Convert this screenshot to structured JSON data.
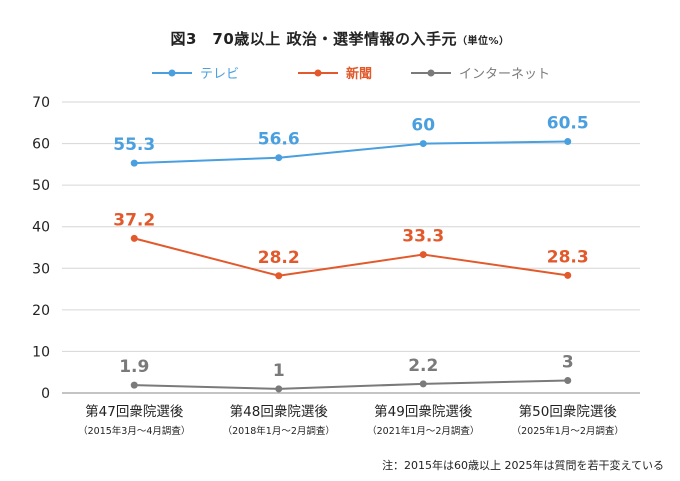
{
  "title": "図3　70歳以上  政治・選挙情報の入手元",
  "title_unit": "（単位%）",
  "footnote": "注：2015年は60歳以上  2025年は質問を若干変えている",
  "chart_data": {
    "type": "line",
    "categories": [
      "第47回衆院選後",
      "第48回衆院選後",
      "第49回衆院選後",
      "第50回衆院選後"
    ],
    "subcategories": [
      "（2015年3月～4月調査）",
      "（2018年1月～2月調査）",
      "（2021年1月～2月調査）",
      "（2025年1月～2月調査）"
    ],
    "series": [
      {
        "name": "テレビ",
        "color": "#4a9fdf",
        "values": [
          55.3,
          56.6,
          60,
          60.5
        ],
        "labels": [
          "55.3",
          "56.6",
          "60",
          "60.5"
        ]
      },
      {
        "name": "新聞",
        "color": "#e2592b",
        "values": [
          37.2,
          28.2,
          33.3,
          28.3
        ],
        "labels": [
          "37.2",
          "28.2",
          "33.3",
          "28.3"
        ]
      },
      {
        "name": "インターネット",
        "color": "#7a7a7a",
        "values": [
          1.9,
          1,
          2.2,
          3
        ],
        "labels": [
          "1.9",
          "1",
          "2.2",
          "3"
        ]
      }
    ],
    "ylim": [
      0,
      70
    ],
    "yticks": [
      "0",
      "10",
      "20",
      "30",
      "40",
      "50",
      "60",
      "70"
    ],
    "grid": true,
    "legend_position": "top"
  }
}
